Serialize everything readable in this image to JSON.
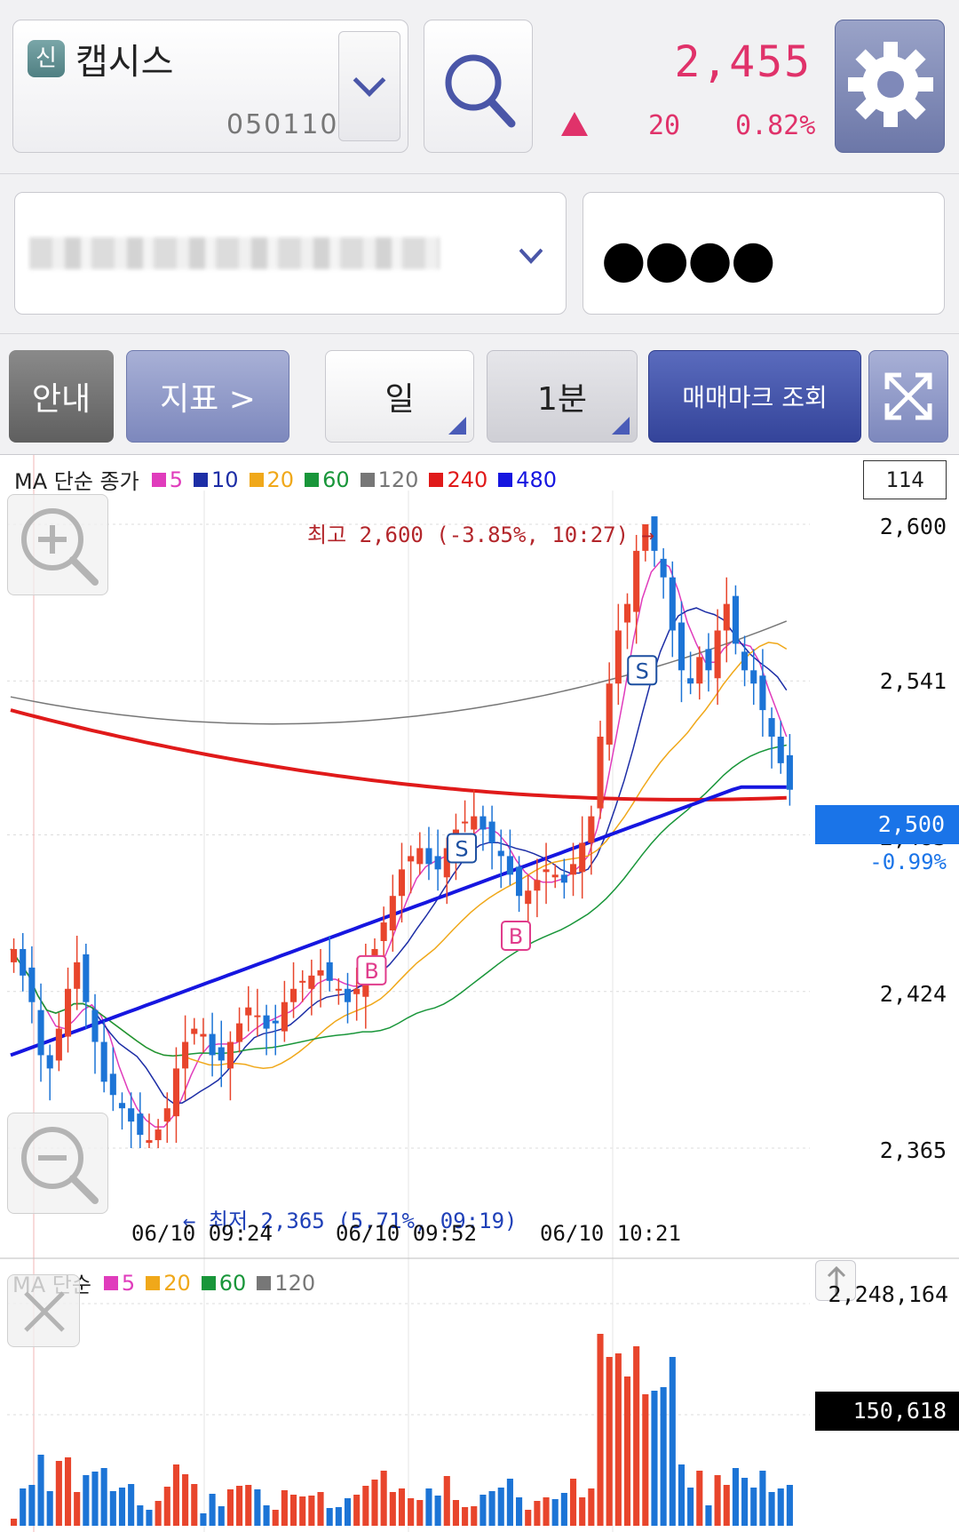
{
  "header": {
    "stock_badge": "신",
    "stock_name": "캡시스",
    "stock_code": "050110",
    "price": "2,455",
    "change": "20",
    "change_pct": "0.82%",
    "colors": {
      "up": "#e0326a",
      "accent": "#4a56a8"
    },
    "icons": [
      "chevron-down-icon",
      "search-icon",
      "gear-icon"
    ]
  },
  "account": {
    "password_mask": "●●●●"
  },
  "toolbar": {
    "guide_label": "안내",
    "indicator_label": "지표 >",
    "period_label": "일",
    "interval_label": "1분",
    "trade_mark_label": "매매마크 조회",
    "expand_icon": "expand-icon"
  },
  "chart": {
    "ma_title": "MA 단순 종가",
    "ma_legend": [
      {
        "label": "5",
        "color": "#e03cbc"
      },
      {
        "label": "10",
        "color": "#1d2ea6"
      },
      {
        "label": "20",
        "color": "#f0a81a"
      },
      {
        "label": "60",
        "color": "#19963a"
      },
      {
        "label": "120",
        "color": "#777777"
      },
      {
        "label": "240",
        "color": "#e01a1a"
      },
      {
        "label": "480",
        "color": "#1616e0"
      }
    ],
    "count": "114",
    "price_labels": [
      "2,600",
      "2,541",
      "2,483",
      "2,424",
      "2,365"
    ],
    "current_price": "2,500",
    "current_pct": "-0.99%",
    "high_annotation": "최고 2,600 (-3.85%, 10:27) →",
    "low_annotation": "← 최저 2,365 (5.71%, 09:19)",
    "time_labels": [
      "06/10 09:24",
      "06/10 09:52",
      "06/10 10:21"
    ],
    "volume_title": "MA 단순",
    "volume_legend": [
      {
        "label": "5",
        "color": "#e03cbc"
      },
      {
        "label": "20",
        "color": "#f0a81a"
      },
      {
        "label": "60",
        "color": "#19963a"
      },
      {
        "label": "120",
        "color": "#777777"
      }
    ],
    "volume_max": "2,248,164",
    "volume_current": "150,618",
    "trade_marks": [
      "S",
      "S",
      "B",
      "B"
    ]
  },
  "chart_data": {
    "type": "candlestick",
    "ylim": [
      2365,
      2600
    ],
    "y_ticks": [
      2600,
      2541,
      2483,
      2424,
      2365
    ],
    "x_ticks": [
      "06/10 09:24",
      "06/10 09:52",
      "06/10 10:21"
    ],
    "high": {
      "value": 2600,
      "time": "10:27"
    },
    "low": {
      "value": 2365,
      "time": "09:19"
    },
    "current": 2500,
    "close_path": [
      2440,
      2430,
      2420,
      2400,
      2395,
      2410,
      2425,
      2435,
      2420,
      2405,
      2390,
      2385,
      2380,
      2375,
      2370,
      2368,
      2372,
      2380,
      2395,
      2405,
      2410,
      2408,
      2400,
      2398,
      2405,
      2412,
      2418,
      2415,
      2410,
      2412,
      2420,
      2425,
      2428,
      2430,
      2432,
      2428,
      2425,
      2420,
      2425,
      2432,
      2440,
      2450,
      2460,
      2470,
      2475,
      2478,
      2472,
      2470,
      2478,
      2485,
      2488,
      2490,
      2485,
      2480,
      2475,
      2468,
      2460,
      2462,
      2466,
      2470,
      2468,
      2465,
      2472,
      2480,
      2490,
      2520,
      2540,
      2560,
      2570,
      2590,
      2600,
      2590,
      2580,
      2560,
      2545,
      2540,
      2550,
      2545,
      2560,
      2570,
      2555,
      2545,
      2540,
      2530,
      2520,
      2510,
      2500
    ]
  }
}
